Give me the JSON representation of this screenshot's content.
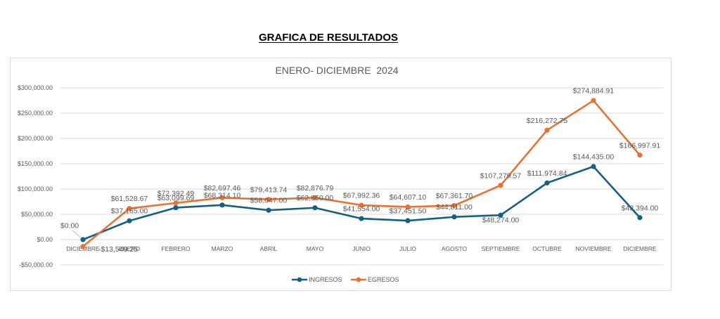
{
  "page": {
    "title": "GRAFICA DE RESULTADOS"
  },
  "chart_data": {
    "type": "line",
    "title": "ENERO- DICIEMBRE  2024",
    "xlabel": "",
    "ylabel": "",
    "categories": [
      "DICIEMBRE",
      "ENERO",
      "FEBRERO",
      "MARZO",
      "ABRIL",
      "MAYO",
      "JUNIO",
      "JULIO",
      "AGOSTO",
      "SEPTIEMBRE",
      "OCTUBRE",
      "NOVIEMBRE",
      "DICIEMBRE"
    ],
    "ylim": [
      -50000,
      300000
    ],
    "yticks": [
      300000,
      250000,
      200000,
      150000,
      100000,
      50000,
      0,
      -50000
    ],
    "ytick_labels": [
      "$300,000.00",
      "$250,000.00",
      "$200,000.00",
      "$150,000.00",
      "$100,000.00",
      "$50,000.00",
      "$0.00",
      "-$50,000.00"
    ],
    "grid": true,
    "legend": "bottom",
    "series": [
      {
        "name": "INGRESOS",
        "color": "#156082",
        "values": [
          0,
          37165.0,
          63099.69,
          68314.1,
          58047.0,
          62860.0,
          41554.0,
          37451.5,
          44811.0,
          48274.0,
          111974.84,
          144435.0,
          43394.0
        ],
        "labels": [
          "$0.00",
          "$37,165.00",
          "$63,099.69",
          "$68,314.10",
          "$58,047.00",
          "$62,860.00",
          "$41,554.00",
          "$37,451.50",
          "$44,811.00",
          "$48,274.00",
          "$111,974.84",
          "$144,435.00",
          "$43,394.00"
        ]
      },
      {
        "name": "EGRESOS",
        "color": "#E97132",
        "values": [
          -13540.25,
          61528.67,
          72392.49,
          82697.46,
          79413.74,
          82876.79,
          67992.36,
          64607.1,
          67361.7,
          107279.57,
          216272.75,
          274884.91,
          166997.91
        ],
        "labels": [
          "-$13,540.25",
          "$61,528.67",
          "$72,392.49",
          "$82,697.46",
          "$79,413.74",
          "$82,876.79",
          "$67,992.36",
          "$64,607.10",
          "$67,361.70",
          "$107,279.57",
          "$216,272.75",
          "$274,884.91",
          "$166,997.91"
        ]
      }
    ],
    "axis_color": "#d9d9d9",
    "text_color": "#595959"
  }
}
